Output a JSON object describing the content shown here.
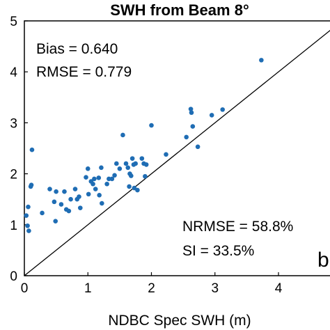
{
  "chart_data": {
    "type": "scatter",
    "title": "SWH from Beam 8°",
    "xlabel": "NDBC Spec SWH (m)",
    "ylabel": "",
    "xlim": [
      0,
      5
    ],
    "ylim": [
      0,
      5
    ],
    "xticks": [
      "0",
      "1",
      "2",
      "3",
      "4"
    ],
    "yticks": [
      "0",
      "1",
      "2",
      "3",
      "4",
      "5"
    ],
    "grid": false,
    "marker_color": "#1f6db4",
    "reference_line": "y = x",
    "annotations": {
      "bias": "Bias = 0.640",
      "rmse": "RMSE = 0.779",
      "nrmse": "NRMSE = 58.8%",
      "si": "SI = 33.5%",
      "panel_letter": "b"
    },
    "points": [
      {
        "x": 0.03,
        "y": 1.18
      },
      {
        "x": 0.05,
        "y": 0.98
      },
      {
        "x": 0.06,
        "y": 1.35
      },
      {
        "x": 0.07,
        "y": 0.88
      },
      {
        "x": 0.1,
        "y": 1.75
      },
      {
        "x": 0.11,
        "y": 1.78
      },
      {
        "x": 0.12,
        "y": 2.47
      },
      {
        "x": 0.28,
        "y": 1.23
      },
      {
        "x": 0.4,
        "y": 1.7
      },
      {
        "x": 0.47,
        "y": 1.45
      },
      {
        "x": 0.49,
        "y": 1.07
      },
      {
        "x": 0.5,
        "y": 1.65
      },
      {
        "x": 0.58,
        "y": 1.4
      },
      {
        "x": 0.63,
        "y": 1.65
      },
      {
        "x": 0.66,
        "y": 1.3
      },
      {
        "x": 0.7,
        "y": 1.27
      },
      {
        "x": 0.73,
        "y": 1.5
      },
      {
        "x": 0.8,
        "y": 1.7
      },
      {
        "x": 0.83,
        "y": 1.5
      },
      {
        "x": 0.86,
        "y": 1.55
      },
      {
        "x": 0.88,
        "y": 1.33
      },
      {
        "x": 0.97,
        "y": 1.93
      },
      {
        "x": 1.0,
        "y": 2.1
      },
      {
        "x": 1.01,
        "y": 1.6
      },
      {
        "x": 1.05,
        "y": 1.85
      },
      {
        "x": 1.08,
        "y": 1.8
      },
      {
        "x": 1.1,
        "y": 1.9
      },
      {
        "x": 1.12,
        "y": 1.7
      },
      {
        "x": 1.17,
        "y": 1.92
      },
      {
        "x": 1.18,
        "y": 1.58
      },
      {
        "x": 1.21,
        "y": 2.12
      },
      {
        "x": 1.22,
        "y": 1.42
      },
      {
        "x": 1.3,
        "y": 1.8
      },
      {
        "x": 1.33,
        "y": 1.9
      },
      {
        "x": 1.38,
        "y": 1.9
      },
      {
        "x": 1.42,
        "y": 1.97
      },
      {
        "x": 1.45,
        "y": 2.2
      },
      {
        "x": 1.5,
        "y": 2.1
      },
      {
        "x": 1.55,
        "y": 2.76
      },
      {
        "x": 1.6,
        "y": 2.2
      },
      {
        "x": 1.63,
        "y": 2.12
      },
      {
        "x": 1.65,
        "y": 1.75
      },
      {
        "x": 1.66,
        "y": 2.0
      },
      {
        "x": 1.68,
        "y": 1.96
      },
      {
        "x": 1.7,
        "y": 2.3
      },
      {
        "x": 1.72,
        "y": 2.18
      },
      {
        "x": 1.73,
        "y": 1.72
      },
      {
        "x": 1.75,
        "y": 2.2
      },
      {
        "x": 1.78,
        "y": 1.68
      },
      {
        "x": 1.85,
        "y": 2.3
      },
      {
        "x": 1.88,
        "y": 2.2
      },
      {
        "x": 1.9,
        "y": 1.95
      },
      {
        "x": 1.92,
        "y": 2.18
      },
      {
        "x": 2.0,
        "y": 2.95
      },
      {
        "x": 2.23,
        "y": 2.38
      },
      {
        "x": 2.55,
        "y": 2.72
      },
      {
        "x": 2.62,
        "y": 3.27
      },
      {
        "x": 2.63,
        "y": 3.2
      },
      {
        "x": 2.65,
        "y": 2.93
      },
      {
        "x": 2.73,
        "y": 2.53
      },
      {
        "x": 2.95,
        "y": 3.15
      },
      {
        "x": 3.12,
        "y": 3.26
      },
      {
        "x": 3.73,
        "y": 4.23
      }
    ]
  }
}
